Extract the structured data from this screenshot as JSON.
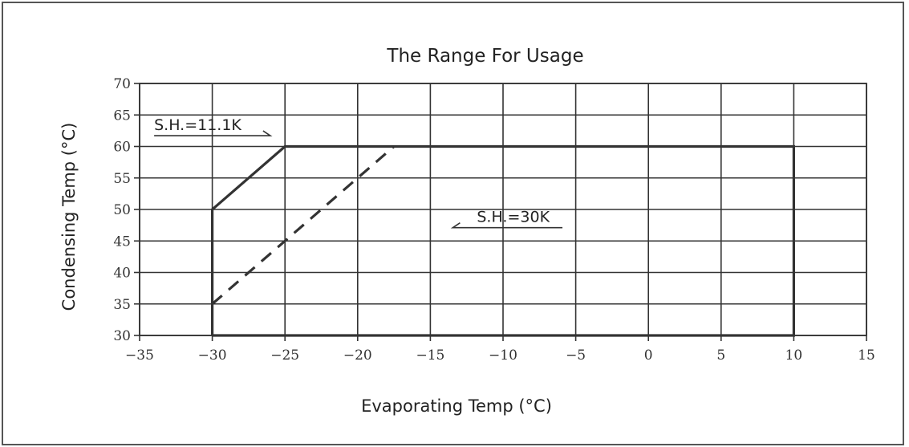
{
  "chart_data": {
    "type": "line",
    "title": "The Range For Usage",
    "xlabel": "Evaporating Temp (°C)",
    "ylabel": "Condensing Temp (°C)",
    "xlim": [
      -35,
      15
    ],
    "ylim": [
      30,
      70
    ],
    "x_ticks": [
      -35,
      -30,
      -25,
      -20,
      -15,
      -10,
      -5,
      0,
      5,
      10,
      15
    ],
    "y_ticks": [
      30,
      35,
      40,
      45,
      50,
      55,
      60,
      65,
      70
    ],
    "x_tick_labels": [
      "−35",
      "−30",
      "−25",
      "−20",
      "−15",
      "−10",
      "−5",
      "0",
      "5",
      "10",
      "15"
    ],
    "y_tick_labels": [
      "30",
      "35",
      "40",
      "45",
      "50",
      "55",
      "60",
      "65",
      "70"
    ],
    "grid": true,
    "series": [
      {
        "style": "solid",
        "x": [
          -30,
          -30,
          -25,
          10,
          10,
          -30
        ],
        "y": [
          30,
          50,
          60,
          60,
          30,
          30
        ]
      },
      {
        "style": "dashed",
        "x": [
          -30,
          -17.5
        ],
        "y": [
          35,
          60
        ]
      }
    ],
    "annotations": [
      {
        "text": "S.H.=11.1K",
        "x": -34,
        "y": 62.6,
        "pointer": "right"
      },
      {
        "text": "S.H.=30K",
        "x": -11.8,
        "y": 48,
        "pointer": "left"
      }
    ],
    "colors": {
      "line": "#333333",
      "grid": "#333333",
      "frame": "#555555"
    }
  }
}
